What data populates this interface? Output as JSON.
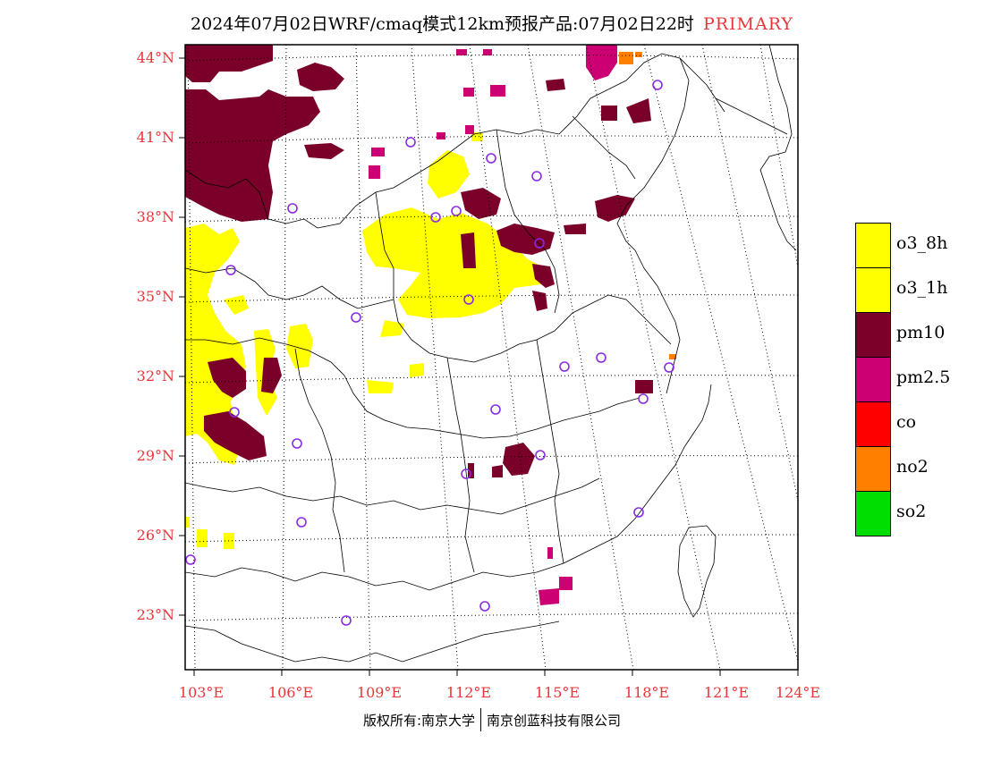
{
  "header": {
    "title": "2024年07月02日WRF/cmaq模式12km预报产品:07月02日22时",
    "mode": "PRIMARY"
  },
  "axes": {
    "lat_labels": [
      "44°N",
      "41°N",
      "38°N",
      "35°N",
      "32°N",
      "29°N",
      "26°N",
      "23°N"
    ],
    "lon_labels": [
      "103°E",
      "106°E",
      "109°E",
      "112°E",
      "115°E",
      "118°E",
      "121°E",
      "124°E"
    ]
  },
  "legend": {
    "items": [
      {
        "label": "o3_8h",
        "color": "#ffff00"
      },
      {
        "label": "o3_1h",
        "color": "#ffff00"
      },
      {
        "label": "pm10",
        "color": "#7a0029"
      },
      {
        "label": "pm2.5",
        "color": "#cc0073"
      },
      {
        "label": "co",
        "color": "#ff0000"
      },
      {
        "label": "no2",
        "color": "#ff7f00"
      },
      {
        "label": "so2",
        "color": "#00dd00"
      }
    ]
  },
  "colors": {
    "o3": "#ffff00",
    "pm10": "#7a0029",
    "pm25": "#cc0073",
    "no2": "#ff7f00",
    "station": "#8a2be2",
    "axis_text": "#e8363a"
  },
  "footer": {
    "copyright": "版权所有:南京大学",
    "company": "南京创蓝科技有限公司"
  }
}
